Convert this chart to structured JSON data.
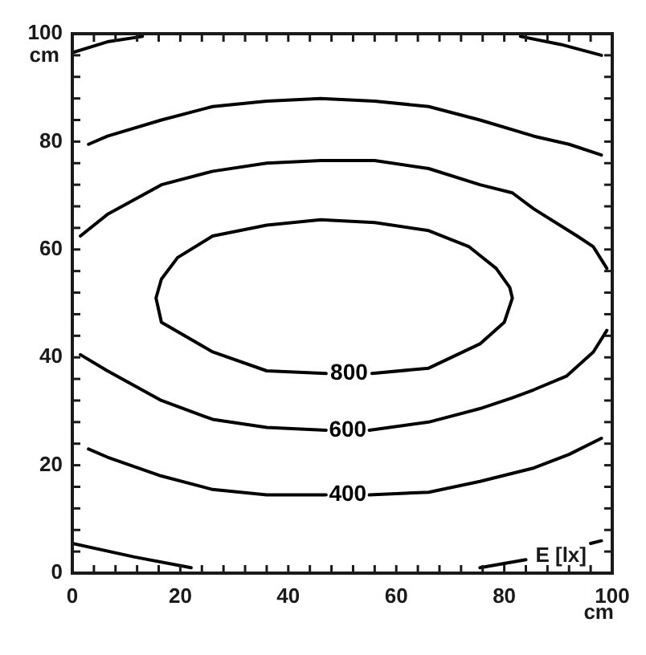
{
  "chart_data": {
    "type": "line",
    "xlabel": "cm",
    "ylabel": "cm",
    "annotations": [
      "E [lx]"
    ],
    "xlim": [
      0,
      100
    ],
    "ylim": [
      0,
      100
    ],
    "xticks": [
      0,
      {
        "value": 4,
        "label": null
      },
      {
        "value": 8,
        "label": null
      },
      {
        "value": 12,
        "label": null
      },
      {
        "value": 16,
        "label": null
      },
      20,
      {
        "value": 24,
        "label": null
      },
      {
        "value": 28,
        "label": null
      },
      {
        "value": 32,
        "label": null
      },
      {
        "value": 36,
        "label": null
      },
      40,
      {
        "value": 44,
        "label": null
      },
      {
        "value": 48,
        "label": null
      },
      {
        "value": 52,
        "label": null
      },
      {
        "value": 56,
        "label": null
      },
      60,
      {
        "value": 64,
        "label": null
      },
      {
        "value": 68,
        "label": null
      },
      {
        "value": 72,
        "label": null
      },
      {
        "value": 76,
        "label": null
      },
      80,
      {
        "value": 84,
        "label": null
      },
      {
        "value": 88,
        "label": null
      },
      {
        "value": 92,
        "label": null
      },
      {
        "value": 96,
        "label": null
      },
      100
    ],
    "yticks": [
      0,
      {
        "value": 4,
        "label": null
      },
      {
        "value": 8,
        "label": null
      },
      {
        "value": 12,
        "label": null
      },
      {
        "value": 16,
        "label": null
      },
      20,
      {
        "value": 24,
        "label": null
      },
      {
        "value": 28,
        "label": null
      },
      {
        "value": 32,
        "label": null
      },
      {
        "value": 36,
        "label": null
      },
      40,
      {
        "value": 44,
        "label": null
      },
      {
        "value": 48,
        "label": null
      },
      {
        "value": 52,
        "label": null
      },
      {
        "value": 56,
        "label": null
      },
      60,
      {
        "value": 64,
        "label": null
      },
      {
        "value": 68,
        "label": null
      },
      {
        "value": 72,
        "label": null
      },
      {
        "value": 76,
        "label": null
      },
      80,
      {
        "value": 84,
        "label": null
      },
      {
        "value": 88,
        "label": null
      },
      {
        "value": 92,
        "label": null
      },
      {
        "value": 96,
        "label": null
      },
      100
    ],
    "series": [
      {
        "name": "800",
        "color": "#000000",
        "x": [
          55.5,
          66,
          75.5,
          80,
          81.5,
          81,
          78.5,
          73.5,
          66,
          56,
          46,
          36,
          26,
          19.5,
          16.5,
          15.5,
          16.5,
          26,
          36,
          47
        ],
        "values": [
          37,
          38,
          42.5,
          46.5,
          51,
          53,
          56.5,
          60.5,
          63.5,
          65,
          65.5,
          64.5,
          62.5,
          58.5,
          54.5,
          51,
          46.5,
          41,
          37.5,
          37
        ]
      },
      {
        "name": "600",
        "color": "#000000",
        "x": [
          55,
          66,
          75.5,
          81.5,
          85.5,
          91.5,
          96.5,
          99,
          null,
          99,
          96.5,
          93.5,
          85.5,
          81.5,
          75.5,
          66,
          56,
          46,
          36,
          26,
          16.5,
          6.5,
          1.5,
          null,
          1.5,
          6.5,
          16.5,
          26,
          36,
          47
        ],
        "values": [
          26.5,
          28,
          30.5,
          32.5,
          34,
          36.5,
          41,
          45,
          null,
          56.5,
          60.5,
          62.5,
          67.5,
          70.5,
          72,
          75,
          76.5,
          76.5,
          76,
          74.5,
          72,
          66.5,
          62.5,
          null,
          40.5,
          37.5,
          32,
          28.5,
          27,
          26.5
        ]
      },
      {
        "name": "400",
        "color": "#000000",
        "x": [
          55,
          66,
          75.5,
          85.5,
          92,
          98,
          null,
          98,
          92,
          85.5,
          75.5,
          66,
          56,
          46,
          36,
          26,
          16.5,
          6.5,
          3,
          null,
          3,
          6.5,
          16.5,
          26,
          36,
          47
        ],
        "values": [
          14.5,
          15,
          17,
          19.5,
          22,
          25,
          null,
          77.5,
          79.5,
          81,
          84,
          86.5,
          87.5,
          88,
          87.5,
          86.5,
          84,
          81,
          79.5,
          null,
          23,
          21.5,
          18,
          15.5,
          14.5,
          14.5
        ]
      },
      {
        "color": "#000000",
        "x": [
          0,
          6.5,
          13,
          null,
          83,
          90.5,
          98,
          null,
          98,
          96,
          null,
          84,
          75.5,
          null,
          22,
          11.5,
          0
        ],
        "values": [
          96.5,
          98.5,
          99.5,
          null,
          99.5,
          98,
          96,
          null,
          6,
          5.5,
          null,
          2.5,
          1,
          null,
          1,
          3,
          5.5
        ]
      }
    ]
  }
}
